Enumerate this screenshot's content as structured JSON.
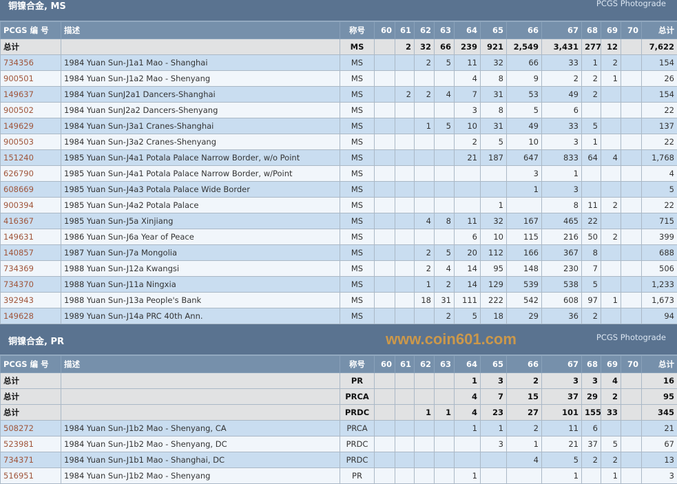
{
  "columns": [
    "PCGS 编 号",
    "描述",
    "称号",
    "60",
    "61",
    "62",
    "63",
    "64",
    "65",
    "66",
    "67",
    "68",
    "69",
    "70",
    "总计"
  ],
  "sections": [
    {
      "title": "铜镍合金, MS",
      "link": "PCGS Photograde",
      "totals": [
        {
          "label": "总计",
          "designation": "MS",
          "grades": [
            "",
            "2",
            "32",
            "66",
            "239",
            "921",
            "2,549",
            "3,431",
            "277",
            "12",
            ""
          ],
          "total": "7,622"
        }
      ],
      "rows": [
        {
          "pcgs": "734356",
          "desc": "1984 Yuan Sun-J1a1 Mao - Shanghai",
          "designation": "MS",
          "grades": [
            "",
            "",
            "2",
            "5",
            "11",
            "32",
            "66",
            "33",
            "1",
            "2",
            ""
          ],
          "total": "154"
        },
        {
          "pcgs": "900501",
          "desc": "1984 Yuan Sun-J1a2 Mao - Shenyang",
          "designation": "MS",
          "grades": [
            "",
            "",
            "",
            "",
            "4",
            "8",
            "9",
            "2",
            "2",
            "1",
            ""
          ],
          "total": "26"
        },
        {
          "pcgs": "149637",
          "desc": "1984 Yuan SunJ2a1 Dancers-Shanghai",
          "designation": "MS",
          "grades": [
            "",
            "2",
            "2",
            "4",
            "7",
            "31",
            "53",
            "49",
            "2",
            "",
            ""
          ],
          "total": "154"
        },
        {
          "pcgs": "900502",
          "desc": "1984 Yuan SunJ2a2 Dancers-Shenyang",
          "designation": "MS",
          "grades": [
            "",
            "",
            "",
            "",
            "3",
            "8",
            "5",
            "6",
            "",
            "",
            ""
          ],
          "total": "22"
        },
        {
          "pcgs": "149629",
          "desc": "1984 Yuan Sun-J3a1 Cranes-Shanghai",
          "designation": "MS",
          "grades": [
            "",
            "",
            "1",
            "5",
            "10",
            "31",
            "49",
            "33",
            "5",
            "",
            ""
          ],
          "total": "137"
        },
        {
          "pcgs": "900503",
          "desc": "1984 Yuan Sun-J3a2 Cranes-Shenyang",
          "designation": "MS",
          "grades": [
            "",
            "",
            "",
            "",
            "2",
            "5",
            "10",
            "3",
            "1",
            "",
            ""
          ],
          "total": "22"
        },
        {
          "pcgs": "151240",
          "desc": "1985 Yuan Sun-J4a1 Potala Palace Narrow Border, w/o Point",
          "designation": "MS",
          "grades": [
            "",
            "",
            "",
            "",
            "21",
            "187",
            "647",
            "833",
            "64",
            "4",
            ""
          ],
          "total": "1,768"
        },
        {
          "pcgs": "626790",
          "desc": "1985 Yuan Sun-J4a1 Potala Palace Narrow Border, w/Point",
          "designation": "MS",
          "grades": [
            "",
            "",
            "",
            "",
            "",
            "",
            "3",
            "1",
            "",
            "",
            ""
          ],
          "total": "4"
        },
        {
          "pcgs": "608669",
          "desc": "1985 Yuan Sun-J4a3 Potala Palace Wide Border",
          "designation": "MS",
          "grades": [
            "",
            "",
            "",
            "",
            "",
            "",
            "1",
            "3",
            "",
            "",
            ""
          ],
          "total": "5"
        },
        {
          "pcgs": "900394",
          "desc": "1985 Yuan Sun-J4a2 Potala Palace",
          "designation": "MS",
          "grades": [
            "",
            "",
            "",
            "",
            "",
            "1",
            "",
            "8",
            "11",
            "2",
            ""
          ],
          "total": "22"
        },
        {
          "pcgs": "416367",
          "desc": "1985 Yuan Sun-J5a Xinjiang",
          "designation": "MS",
          "grades": [
            "",
            "",
            "4",
            "8",
            "11",
            "32",
            "167",
            "465",
            "22",
            "",
            ""
          ],
          "total": "715"
        },
        {
          "pcgs": "149631",
          "desc": "1986 Yuan Sun-J6a Year of Peace",
          "designation": "MS",
          "grades": [
            "",
            "",
            "",
            "",
            "6",
            "10",
            "115",
            "216",
            "50",
            "2",
            ""
          ],
          "total": "399"
        },
        {
          "pcgs": "140857",
          "desc": "1987 Yuan Sun-J7a Mongolia",
          "designation": "MS",
          "grades": [
            "",
            "",
            "2",
            "5",
            "20",
            "112",
            "166",
            "367",
            "8",
            "",
            ""
          ],
          "total": "688"
        },
        {
          "pcgs": "734369",
          "desc": "1988 Yuan Sun-J12a Kwangsi",
          "designation": "MS",
          "grades": [
            "",
            "",
            "2",
            "4",
            "14",
            "95",
            "148",
            "230",
            "7",
            "",
            ""
          ],
          "total": "506"
        },
        {
          "pcgs": "734370",
          "desc": "1988 Yuan Sun-J11a Ningxia",
          "designation": "MS",
          "grades": [
            "",
            "",
            "1",
            "2",
            "14",
            "129",
            "539",
            "538",
            "5",
            "",
            ""
          ],
          "total": "1,233"
        },
        {
          "pcgs": "392943",
          "desc": "1988 Yuan Sun-J13a People's Bank",
          "designation": "MS",
          "grades": [
            "",
            "",
            "18",
            "31",
            "111",
            "222",
            "542",
            "608",
            "97",
            "1",
            ""
          ],
          "total": "1,673"
        },
        {
          "pcgs": "149628",
          "desc": "1989 Yuan Sun-J14a PRC 40th Ann.",
          "designation": "MS",
          "grades": [
            "",
            "",
            "",
            "2",
            "5",
            "18",
            "29",
            "36",
            "2",
            "",
            ""
          ],
          "total": "94"
        }
      ]
    },
    {
      "title": "铜镍合金, PR",
      "link": "PCGS Photograde",
      "totals": [
        {
          "label": "总计",
          "designation": "PR",
          "grades": [
            "",
            "",
            "",
            "",
            "1",
            "3",
            "2",
            "3",
            "3",
            "4",
            ""
          ],
          "total": "16"
        },
        {
          "label": "总计",
          "designation": "PRCA",
          "grades": [
            "",
            "",
            "",
            "",
            "4",
            "7",
            "15",
            "37",
            "29",
            "2",
            ""
          ],
          "total": "95"
        },
        {
          "label": "总计",
          "designation": "PRDC",
          "grades": [
            "",
            "",
            "1",
            "1",
            "4",
            "23",
            "27",
            "101",
            "155",
            "33",
            ""
          ],
          "total": "345"
        }
      ],
      "rows": [
        {
          "pcgs": "508272",
          "desc": "1984 Yuan Sun-J1b2 Mao - Shenyang, CA",
          "designation": "PRCA",
          "grades": [
            "",
            "",
            "",
            "",
            "1",
            "1",
            "2",
            "11",
            "6",
            "",
            ""
          ],
          "total": "21"
        },
        {
          "pcgs": "523981",
          "desc": "1984 Yuan Sun-J1b2 Mao - Shenyang, DC",
          "designation": "PRDC",
          "grades": [
            "",
            "",
            "",
            "",
            "",
            "3",
            "1",
            "21",
            "37",
            "5",
            ""
          ],
          "total": "67"
        },
        {
          "pcgs": "734371",
          "desc": "1984 Yuan Sun-J1b1 Mao - Shanghai, DC",
          "designation": "PRDC",
          "grades": [
            "",
            "",
            "",
            "",
            "",
            "",
            "4",
            "5",
            "2",
            "2",
            ""
          ],
          "total": "13"
        },
        {
          "pcgs": "516951",
          "desc": "1984 Yuan Sun-J1b2 Mao - Shenyang",
          "designation": "PR",
          "grades": [
            "",
            "",
            "",
            "",
            "1",
            "",
            "",
            "1",
            "",
            "1",
            ""
          ],
          "total": "3"
        }
      ]
    }
  ],
  "watermark": "www.coin601.com"
}
